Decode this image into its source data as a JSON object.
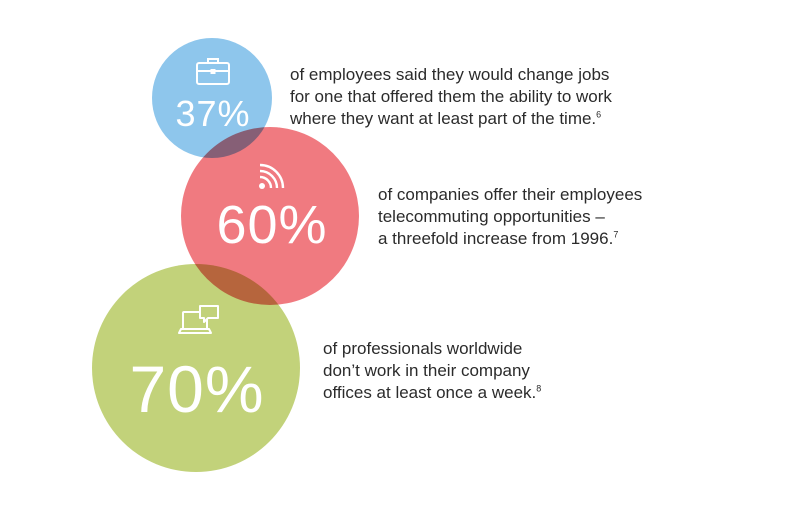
{
  "colors": {
    "blue": "#8ec6ec",
    "red": "#f07a80",
    "green": "#c2d27a",
    "text": "#2b2b2b"
  },
  "stats": [
    {
      "percent": "37%",
      "icon": "briefcase-icon",
      "lines": [
        "of employees said they would change jobs",
        "for one that offered them the ability to work",
        "where they want at least part of the time."
      ],
      "footnote": "6"
    },
    {
      "percent": "60%",
      "icon": "wifi-signal-icon",
      "lines": [
        "of companies offer their employees",
        "telecommuting opportunities –",
        "a threefold increase from 1996."
      ],
      "footnote": "7"
    },
    {
      "percent": "70%",
      "icon": "laptop-chat-icon",
      "lines": [
        "of professionals worldwide",
        "don’t work in their company",
        "offices at least once a week."
      ],
      "footnote": "8"
    }
  ]
}
